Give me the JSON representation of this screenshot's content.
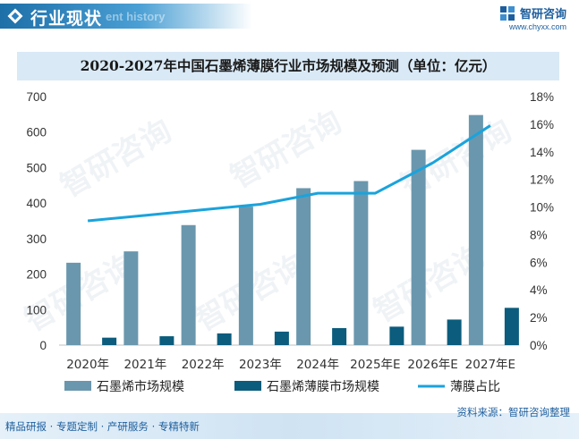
{
  "header": {
    "title": "行业现状",
    "subtitle_en": "ent history"
  },
  "brand": {
    "name": "智研咨询",
    "url": "www.chyxx.com"
  },
  "watermark": {
    "text": "智研咨询"
  },
  "footer": {
    "left": "精品研报 · 专题定制 · 产研服务 · 专精特新",
    "source": "资料来源：智研咨询整理",
    "watermark": "智研咨询"
  },
  "chart_data": {
    "type": "bar",
    "title": "2020-2027年中国石墨烯薄膜行业市场规模及预测（单位：亿元）",
    "categories": [
      "2020年",
      "2021年",
      "2022年",
      "2023年",
      "2024年",
      "2025年E",
      "2026年E",
      "2027年E"
    ],
    "series": [
      {
        "name": "石墨烯市场规模",
        "kind": "bar",
        "axis": "left",
        "color": "#6a97ad",
        "values": [
          232,
          264,
          338,
          390,
          442,
          462,
          550,
          648
        ]
      },
      {
        "name": "石墨烯薄膜市场规模",
        "kind": "bar",
        "axis": "left",
        "color": "#0b5c7d",
        "values": [
          21,
          25,
          33,
          38,
          48,
          52,
          72,
          105
        ]
      },
      {
        "name": "薄膜占比",
        "kind": "line",
        "axis": "right",
        "color": "#1aa3dc",
        "values": [
          9.0,
          9.4,
          9.8,
          10.2,
          11.0,
          11.0,
          13.2,
          15.9
        ]
      }
    ],
    "y_left": {
      "min": 0,
      "max": 700,
      "ticks": [
        "0",
        "100",
        "200",
        "300",
        "400",
        "500",
        "600",
        "700"
      ]
    },
    "y_right": {
      "min": 0,
      "max": 18,
      "ticks": [
        "0%",
        "2%",
        "4%",
        "6%",
        "8%",
        "10%",
        "12%",
        "14%",
        "16%",
        "18%"
      ]
    },
    "grid": false,
    "legend_position": "bottom"
  }
}
